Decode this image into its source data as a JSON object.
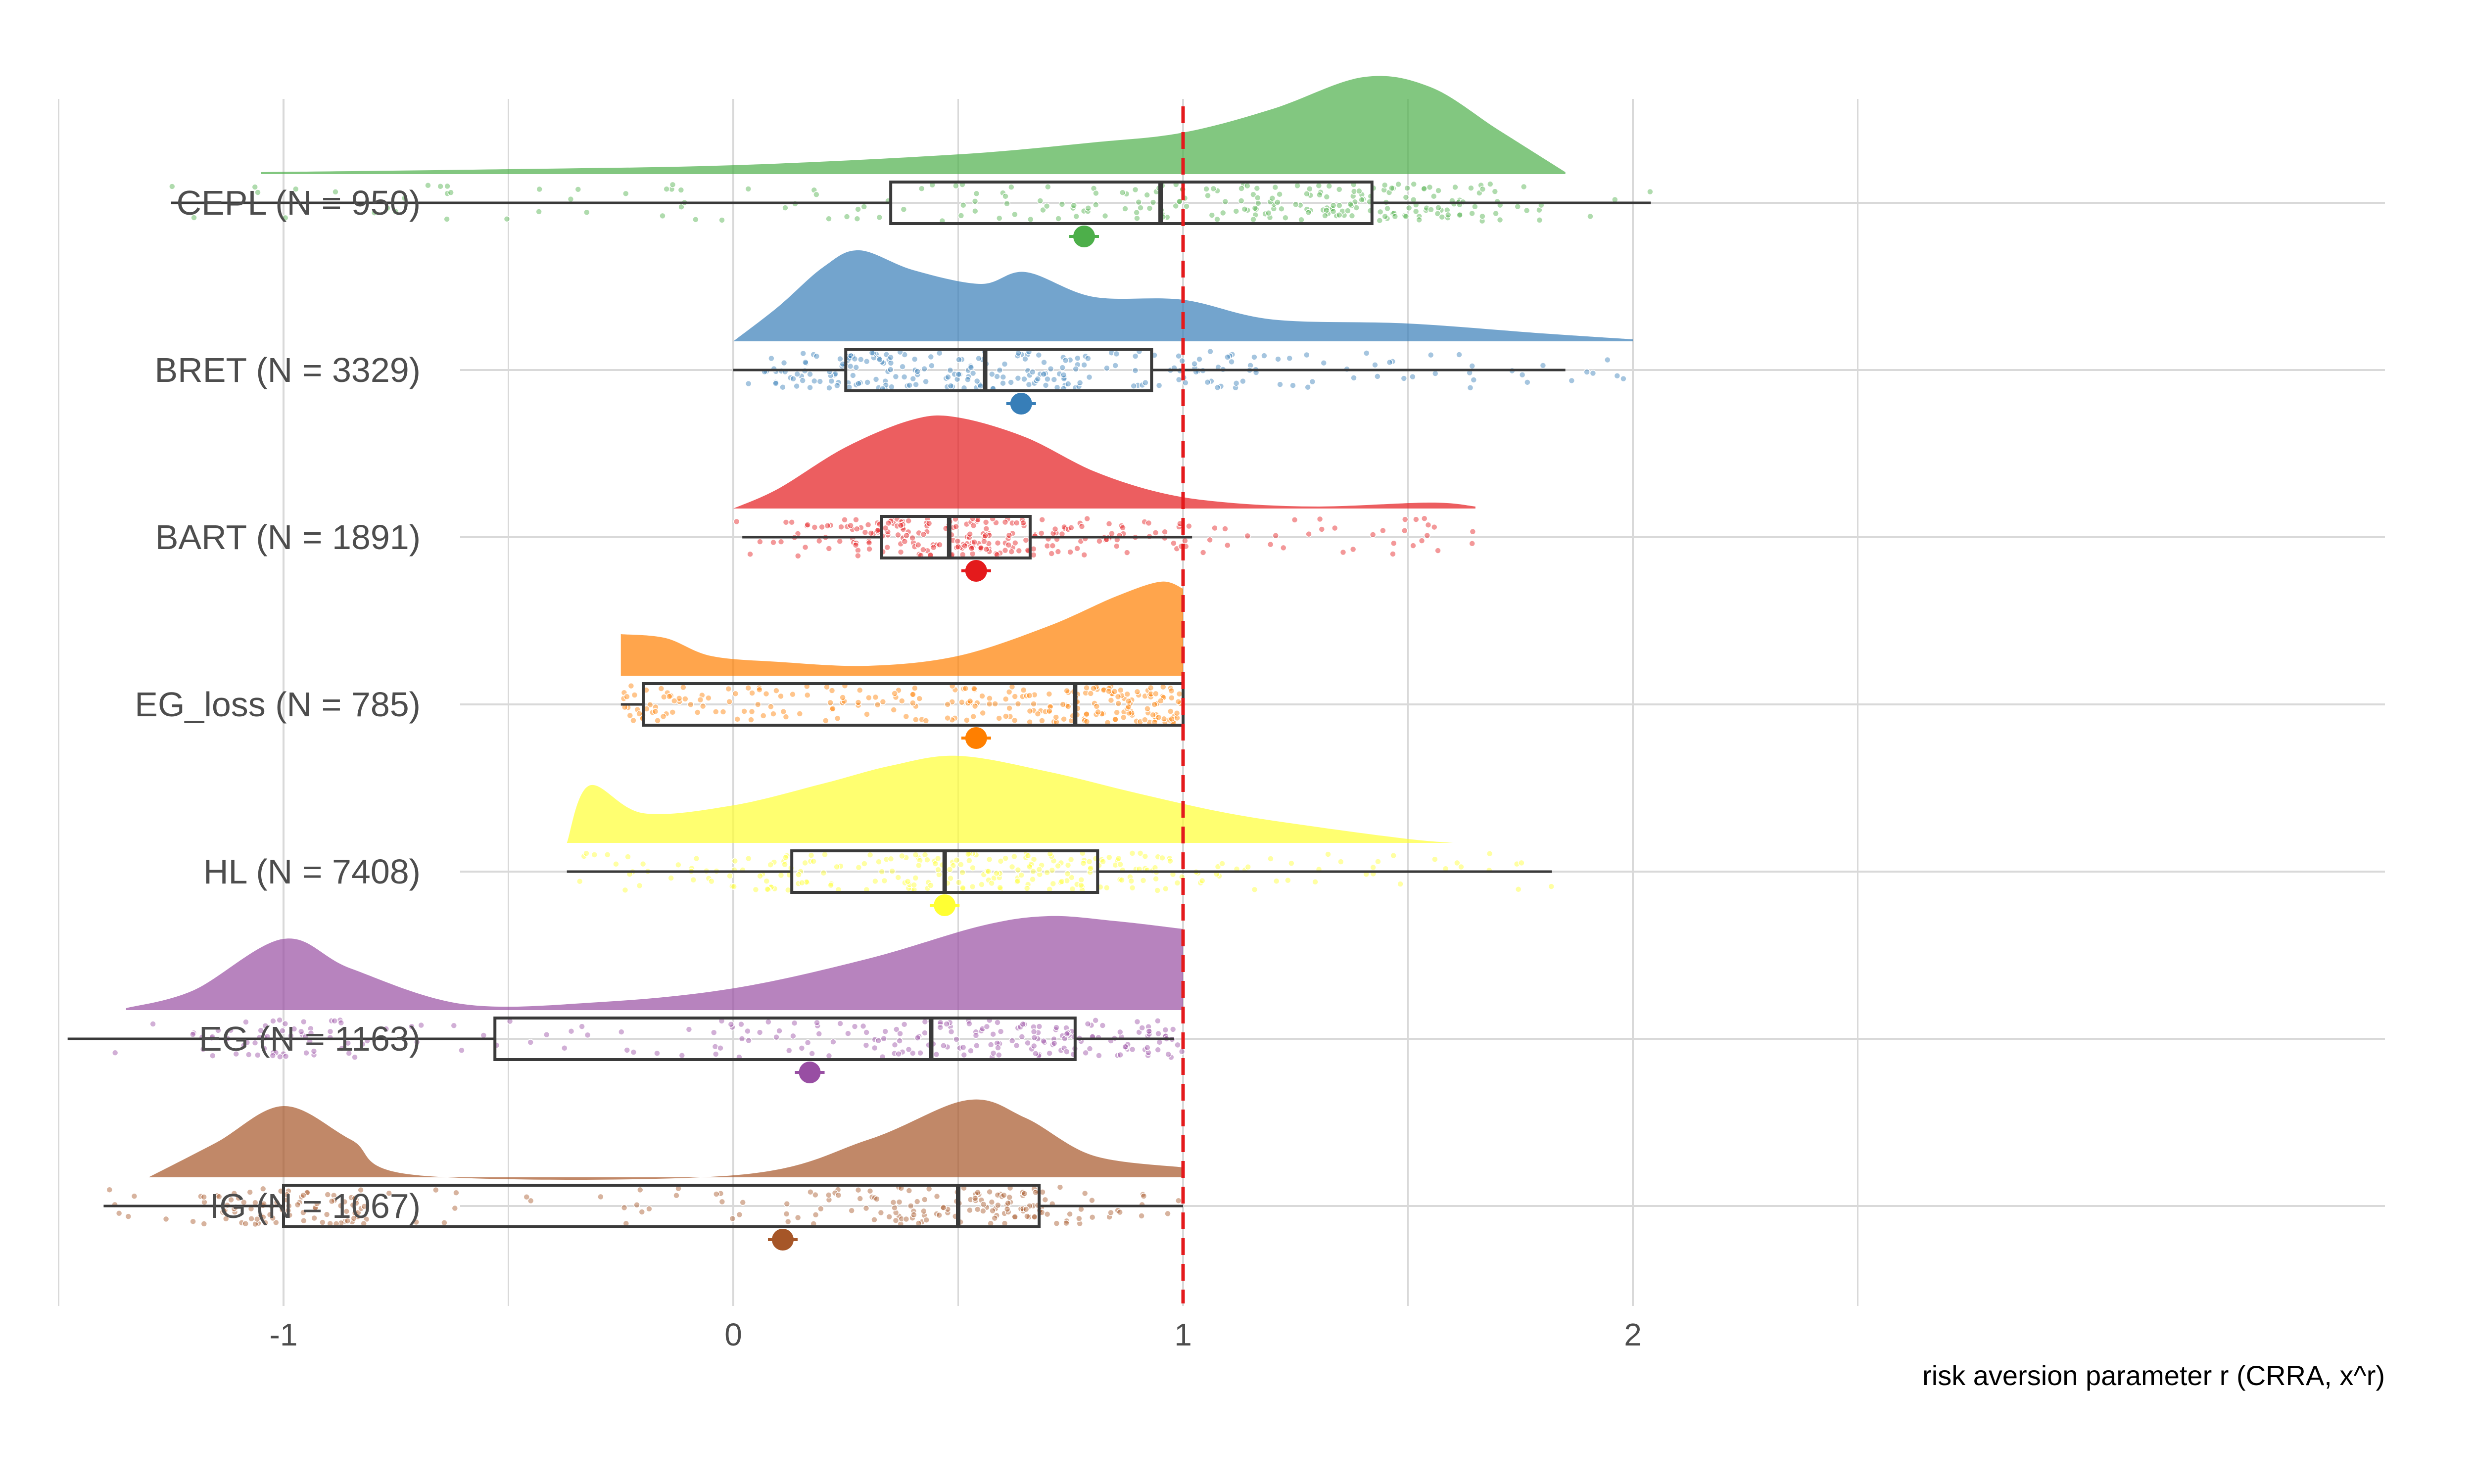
{
  "chart_data": {
    "type": "raincloud",
    "title": "",
    "xlabel": "risk aversion parameter r (CRRA, x^r)",
    "ylabel": "",
    "xlim": [
      -1.5,
      2.7
    ],
    "xticks": [
      -1,
      0,
      1,
      2
    ],
    "grid": true,
    "reference_line": {
      "x": 1,
      "color": "#e41a1c",
      "style": "dashed"
    },
    "groups": [
      {
        "label": "CEPL (N = 950)",
        "color": "#4daf4a",
        "box": {
          "whisker_low": -1.25,
          "q1": 0.35,
          "median": 0.95,
          "q3": 1.42,
          "whisker_high": 2.04
        },
        "mean": 0.78,
        "density_range": [
          -1.05,
          1.85
        ],
        "density": [
          [
            -1.05,
            0.02
          ],
          [
            -0.5,
            0.05
          ],
          [
            0.0,
            0.09
          ],
          [
            0.5,
            0.2
          ],
          [
            0.8,
            0.32
          ],
          [
            1.0,
            0.42
          ],
          [
            1.2,
            0.66
          ],
          [
            1.4,
            0.98
          ],
          [
            1.55,
            0.88
          ],
          [
            1.7,
            0.45
          ],
          [
            1.85,
            0.02
          ]
        ]
      },
      {
        "label": "BRET (N = 3329)",
        "color": "#377eb8",
        "box": {
          "whisker_low": 0.0,
          "q1": 0.25,
          "median": 0.56,
          "q3": 0.93,
          "whisker_high": 1.85
        },
        "mean": 0.64,
        "density_range": [
          0.0,
          2.0
        ],
        "density": [
          [
            0.0,
            0.0
          ],
          [
            0.1,
            0.35
          ],
          [
            0.2,
            0.75
          ],
          [
            0.28,
            0.92
          ],
          [
            0.4,
            0.72
          ],
          [
            0.55,
            0.58
          ],
          [
            0.65,
            0.7
          ],
          [
            0.8,
            0.45
          ],
          [
            1.0,
            0.42
          ],
          [
            1.2,
            0.22
          ],
          [
            1.5,
            0.18
          ],
          [
            1.8,
            0.08
          ],
          [
            2.0,
            0.02
          ]
        ]
      },
      {
        "label": "BART (N = 1891)",
        "color": "#e41a1c",
        "box": {
          "whisker_low": 0.02,
          "q1": 0.33,
          "median": 0.48,
          "q3": 0.66,
          "whisker_high": 1.02
        },
        "mean": 0.54,
        "density_range": [
          0.0,
          1.65
        ],
        "density": [
          [
            0.0,
            0.0
          ],
          [
            0.1,
            0.2
          ],
          [
            0.25,
            0.62
          ],
          [
            0.4,
            0.9
          ],
          [
            0.5,
            0.92
          ],
          [
            0.65,
            0.72
          ],
          [
            0.8,
            0.38
          ],
          [
            0.95,
            0.16
          ],
          [
            1.1,
            0.06
          ],
          [
            1.3,
            0.02
          ],
          [
            1.55,
            0.06
          ],
          [
            1.65,
            0.02
          ]
        ]
      },
      {
        "label": "EG_loss (N = 785)",
        "color": "#ff7f00",
        "box": {
          "whisker_low": -0.25,
          "q1": -0.2,
          "median": 0.76,
          "q3": 1.0,
          "whisker_high": 1.0
        },
        "mean": 0.54,
        "density_range": [
          -0.25,
          1.0
        ],
        "density": [
          [
            -0.25,
            0.42
          ],
          [
            -0.15,
            0.38
          ],
          [
            -0.05,
            0.2
          ],
          [
            0.1,
            0.14
          ],
          [
            0.3,
            0.1
          ],
          [
            0.5,
            0.2
          ],
          [
            0.7,
            0.5
          ],
          [
            0.85,
            0.8
          ],
          [
            0.95,
            0.95
          ],
          [
            1.0,
            0.88
          ]
        ]
      },
      {
        "label": "HL (N = 7408)",
        "color": "#ffff33",
        "box": {
          "whisker_low": -0.37,
          "q1": 0.13,
          "median": 0.47,
          "q3": 0.81,
          "whisker_high": 1.82
        },
        "mean": 0.47,
        "density_range": [
          -0.37,
          1.6
        ],
        "density": [
          [
            -0.37,
            0.0
          ],
          [
            -0.32,
            0.58
          ],
          [
            -0.2,
            0.3
          ],
          [
            0.0,
            0.38
          ],
          [
            0.2,
            0.6
          ],
          [
            0.35,
            0.78
          ],
          [
            0.5,
            0.88
          ],
          [
            0.7,
            0.72
          ],
          [
            0.9,
            0.5
          ],
          [
            1.1,
            0.3
          ],
          [
            1.3,
            0.16
          ],
          [
            1.5,
            0.04
          ],
          [
            1.6,
            0.0
          ]
        ]
      },
      {
        "label": "EG (N = 1163)",
        "color": "#984ea3",
        "box": {
          "whisker_low": -1.48,
          "q1": -0.53,
          "median": 0.44,
          "q3": 0.76,
          "whisker_high": 0.98
        },
        "mean": 0.17,
        "density_range": [
          -1.35,
          1.0
        ],
        "density": [
          [
            -1.35,
            0.02
          ],
          [
            -1.2,
            0.2
          ],
          [
            -1.0,
            0.72
          ],
          [
            -0.85,
            0.42
          ],
          [
            -0.6,
            0.06
          ],
          [
            -0.3,
            0.08
          ],
          [
            0.0,
            0.22
          ],
          [
            0.3,
            0.52
          ],
          [
            0.55,
            0.85
          ],
          [
            0.7,
            0.95
          ],
          [
            0.85,
            0.9
          ],
          [
            1.0,
            0.82
          ]
        ]
      },
      {
        "label": "IG (N = 1067)",
        "color": "#a65628",
        "box": {
          "whisker_low": -1.4,
          "q1": -1.0,
          "median": 0.5,
          "q3": 0.68,
          "whisker_high": 1.0
        },
        "mean": 0.11,
        "density_range": [
          -1.3,
          1.0
        ],
        "density": [
          [
            -1.3,
            0.0
          ],
          [
            -1.15,
            0.35
          ],
          [
            -1.0,
            0.72
          ],
          [
            -0.85,
            0.38
          ],
          [
            -0.7,
            0.02
          ],
          [
            0.0,
            0.02
          ],
          [
            0.3,
            0.38
          ],
          [
            0.52,
            0.78
          ],
          [
            0.65,
            0.6
          ],
          [
            0.8,
            0.22
          ],
          [
            1.0,
            0.1
          ]
        ]
      }
    ]
  }
}
